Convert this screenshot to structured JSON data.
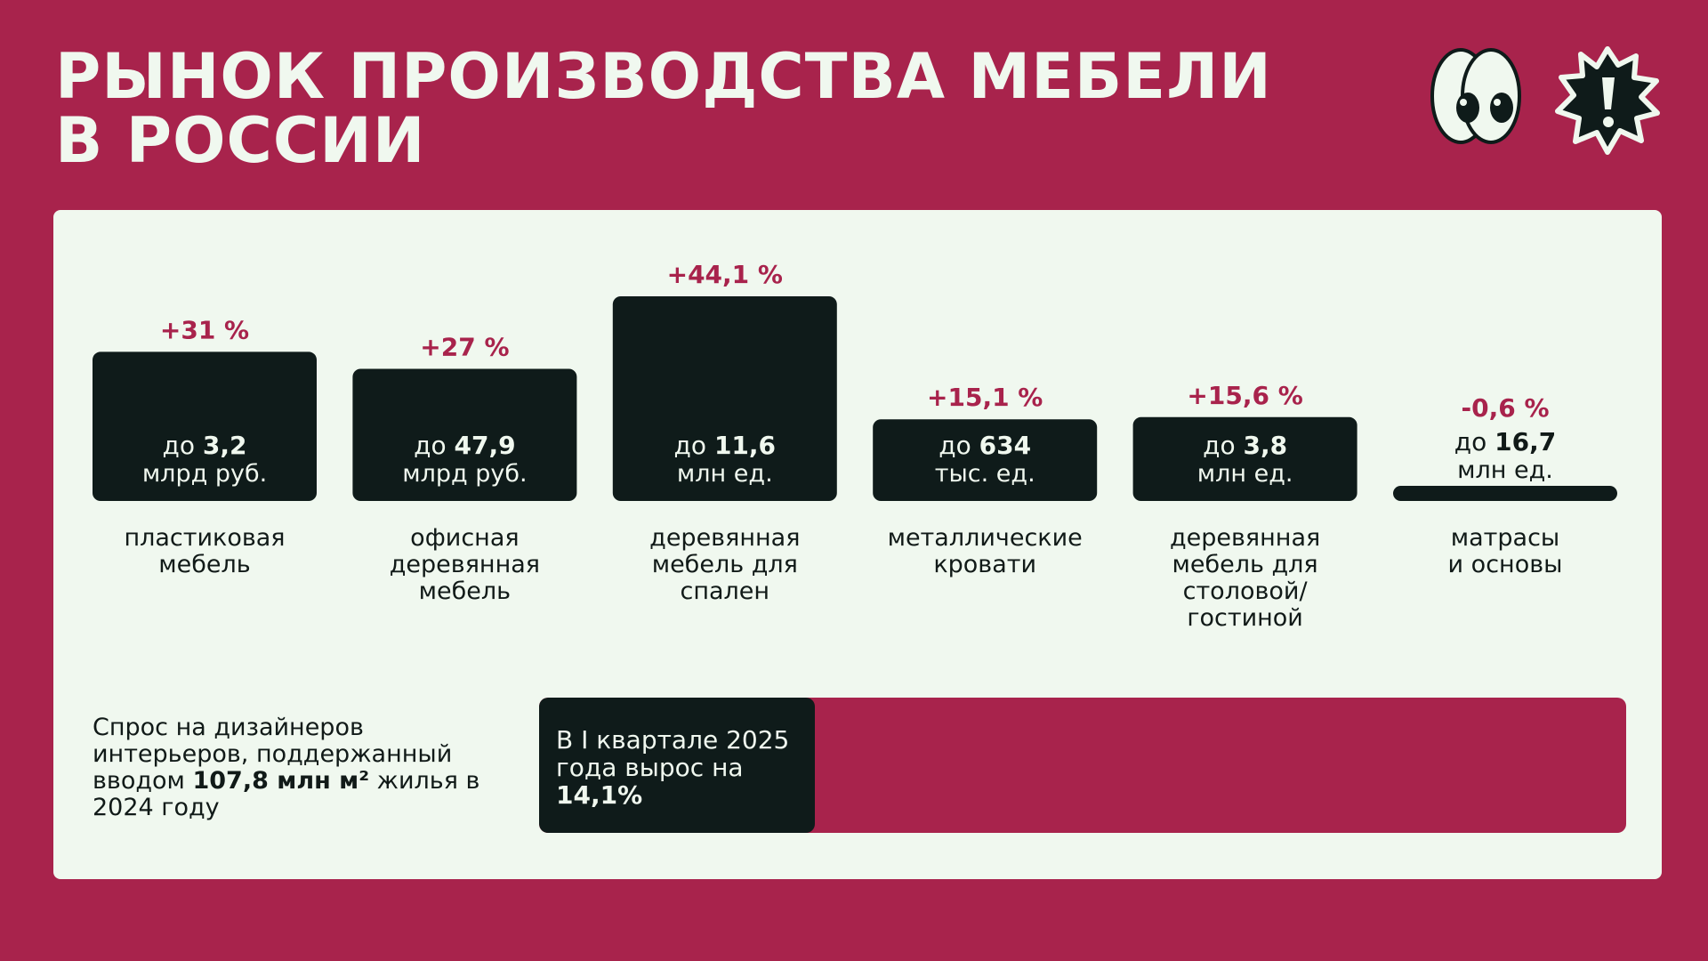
{
  "title_line1": "РЫНОК ПРОИЗВОДСТВА МЕБЕЛИ",
  "title_line2": "В РОССИИ",
  "icons": [
    "eyes-icon",
    "exclamation-burst-icon"
  ],
  "colors": {
    "background": "#A8234C",
    "card": "#F0F8EF",
    "bar": "#0F1B1A",
    "accent": "#A8234C"
  },
  "chart_data": {
    "type": "bar",
    "title": "",
    "categories": [
      "пластиковая мебель",
      "офисная деревянная мебель",
      "деревянная мебель для спален",
      "металлические кровати",
      "деревянная мебель для столовой/ гостиной",
      "матрасы и основы"
    ],
    "category_lines": [
      [
        "пластиковая",
        "мебель"
      ],
      [
        "офисная",
        "деревянная",
        "мебель"
      ],
      [
        "деревянная",
        "мебель для",
        "спален"
      ],
      [
        "металлические",
        "кровати"
      ],
      [
        "деревянная",
        "мебель для",
        "столовой/",
        "гостиной"
      ],
      [
        "матрасы",
        "и основы"
      ]
    ],
    "values": [
      31,
      27,
      44.1,
      15.1,
      15.6,
      -0.6
    ],
    "value_labels": [
      "+31 %",
      "+27 %",
      "+44,1 %",
      "+15,1 %",
      "+15,6 %",
      "-0,6 %"
    ],
    "volume_prefix": "до",
    "volumes": [
      "3,2",
      "47,9",
      "11,6",
      "634",
      "3,8",
      "16,7"
    ],
    "units": [
      "млрд руб.",
      "млрд руб.",
      "млн ед.",
      "тыс. ед.",
      "млн ед.",
      "млн ед."
    ],
    "unit": "%",
    "ylim": [
      -0.6,
      44.1
    ],
    "grid": false,
    "legend": "none"
  },
  "demand": {
    "text_before": "Спрос на дизайнеров интерьеров, поддержанный вводом ",
    "highlight": "107,8 млн м²",
    "text_after": " жилья в 2024 году"
  },
  "growth": {
    "text_before": "В I квартале 2025 года вырос на ",
    "highlight": "14,1%",
    "value_percent": 14.1
  }
}
